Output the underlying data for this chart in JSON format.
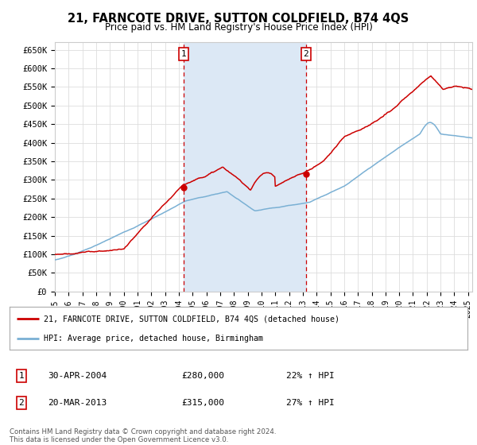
{
  "title": "21, FARNCOTE DRIVE, SUTTON COLDFIELD, B74 4QS",
  "subtitle": "Price paid vs. HM Land Registry's House Price Index (HPI)",
  "ylabel_ticks": [
    "£0",
    "£50K",
    "£100K",
    "£150K",
    "£200K",
    "£250K",
    "£300K",
    "£350K",
    "£400K",
    "£450K",
    "£500K",
    "£550K",
    "£600K",
    "£650K"
  ],
  "ytick_values": [
    0,
    50000,
    100000,
    150000,
    200000,
    250000,
    300000,
    350000,
    400000,
    450000,
    500000,
    550000,
    600000,
    650000
  ],
  "ylim": [
    0,
    670000
  ],
  "xlim_start": 1995.0,
  "xlim_end": 2025.3,
  "background_color": "#ffffff",
  "grid_color": "#dddddd",
  "shaded_region_color": "#dce8f5",
  "legend_label_red": "21, FARNCOTE DRIVE, SUTTON COLDFIELD, B74 4QS (detached house)",
  "legend_label_blue": "HPI: Average price, detached house, Birmingham",
  "transaction1_date": "30-APR-2004",
  "transaction1_price": "£280,000",
  "transaction1_hpi": "22% ↑ HPI",
  "transaction1_x": 2004.33,
  "transaction1_y": 280000,
  "transaction2_date": "20-MAR-2013",
  "transaction2_price": "£315,000",
  "transaction2_hpi": "27% ↑ HPI",
  "transaction2_x": 2013.22,
  "transaction2_y": 315000,
  "red_color": "#cc0000",
  "blue_color": "#7ab0d4",
  "footer_text": "Contains HM Land Registry data © Crown copyright and database right 2024.\nThis data is licensed under the Open Government Licence v3.0.",
  "xtick_years": [
    1995,
    1996,
    1997,
    1998,
    1999,
    2000,
    2001,
    2002,
    2003,
    2004,
    2005,
    2006,
    2007,
    2008,
    2009,
    2010,
    2011,
    2012,
    2013,
    2014,
    2015,
    2016,
    2017,
    2018,
    2019,
    2020,
    2021,
    2022,
    2023,
    2024,
    2025
  ]
}
